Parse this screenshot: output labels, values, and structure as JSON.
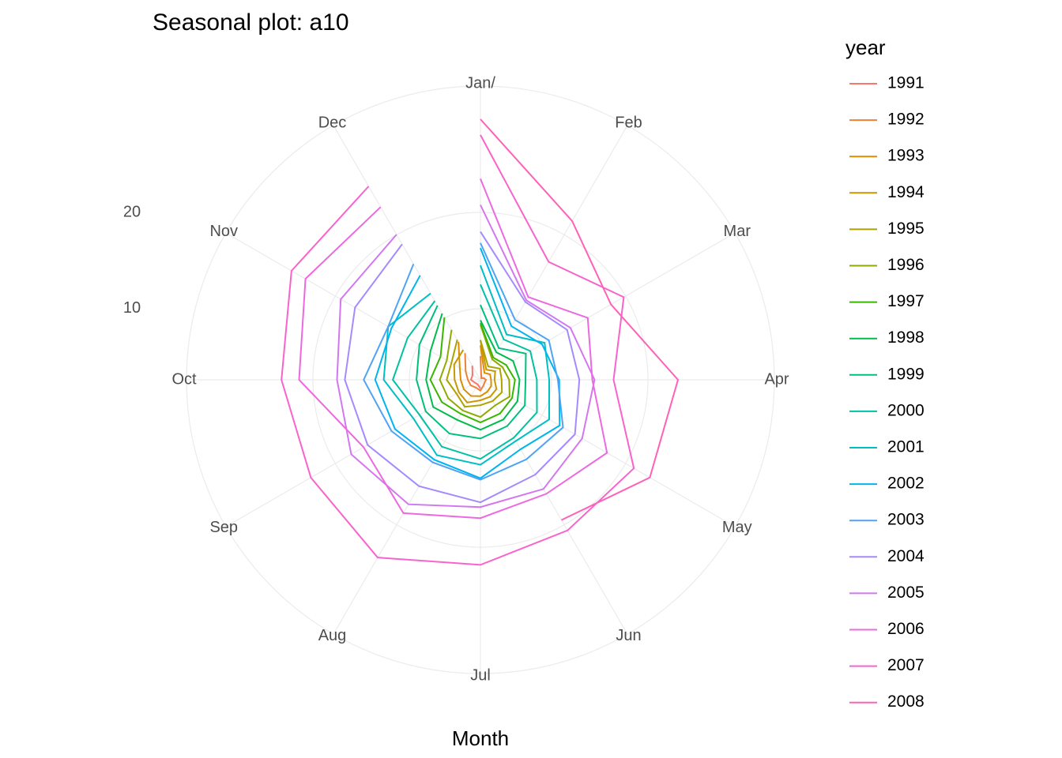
{
  "chart_data": {
    "type": "polar-line",
    "title": "Seasonal plot: a10",
    "x_label": "Month",
    "legend_title": "year",
    "legend": "right",
    "grid": true,
    "categories": [
      "Jan/",
      "Feb",
      "Mar",
      "Apr",
      "May",
      "Jun",
      "Jul",
      "Aug",
      "Sep",
      "Oct",
      "Nov",
      "Dec"
    ],
    "ylim": [
      2.62,
      29.67
    ],
    "yticks": [
      10,
      20
    ],
    "series": [
      {
        "name": "1991",
        "color": "#F8766D",
        "values": [
          null,
          null,
          null,
          null,
          null,
          null,
          3.53,
          3.18,
          3.25,
          3.61,
          3.57,
          4.31
        ]
      },
      {
        "name": "1992",
        "color": "#EC8239",
        "values": [
          5.09,
          2.81,
          2.99,
          3.2,
          3.13,
          3.27,
          3.74,
          3.56,
          3.78,
          3.92,
          4.39,
          5.81
        ]
      },
      {
        "name": "1993",
        "color": "#DB8E00",
        "values": [
          6.19,
          3.45,
          3.77,
          3.73,
          3.91,
          4.05,
          4.32,
          4.56,
          4.61,
          4.67,
          5.09,
          7.18
        ]
      },
      {
        "name": "1994",
        "color": "#C79800",
        "values": [
          6.73,
          3.84,
          4.39,
          4.08,
          4.54,
          4.65,
          4.75,
          5.35,
          5.2,
          5.3,
          5.77,
          6.2
        ]
      },
      {
        "name": "1995",
        "color": "#AEA200",
        "values": [
          6.75,
          4.22,
          4.95,
          4.82,
          5.19,
          5.17,
          5.26,
          5.86,
          5.49,
          6.12,
          6.09,
          7.42
        ]
      },
      {
        "name": "1996",
        "color": "#8FAA00",
        "values": [
          8.33,
          5.07,
          5.26,
          5.6,
          6.11,
          5.69,
          6.49,
          6.3,
          6.47,
          6.83,
          6.65,
          8.61
        ]
      },
      {
        "name": "1997",
        "color": "#39B600",
        "values": [
          8.52,
          5.28,
          5.71,
          6.21,
          6.41,
          6.67,
          7.05,
          6.7,
          7.25,
          7.82,
          7.4,
          10.1
        ]
      },
      {
        "name": "1998",
        "color": "#00BB4E",
        "values": [
          8.8,
          5.92,
          6.53,
          6.68,
          7.06,
          7.38,
          7.81,
          7.43,
          8.28,
          8.26,
          8.6,
          10.56
        ]
      },
      {
        "name": "1999",
        "color": "#00BF7D",
        "values": [
          10.39,
          6.42,
          8.06,
          7.3,
          7.94,
          8.17,
          8.72,
          9.07,
          9.18,
          9.25,
          9.93,
          11.53
        ]
      },
      {
        "name": "2000",
        "color": "#00C1A3",
        "values": [
          12.51,
          7.46,
          8.59,
          8.47,
          9.39,
          9.56,
          10.83,
          10.64,
          9.91,
          11.71,
          11.34,
          12.08
        ]
      },
      {
        "name": "2001",
        "color": "#00BFC4",
        "values": [
          14.5,
          8.05,
          10.31,
          9.75,
          10.85,
          9.96,
          11.44,
          11.66,
          10.65,
          12.65,
          13.67,
          12.97
        ]
      },
      {
        "name": "2002",
        "color": "#00B4EF",
        "values": [
          16.3,
          9.05,
          10.0,
          10.79,
          12.11,
          10.95,
          12.84,
          12.2,
          12.85,
          13.54,
          13.29,
          15.13
        ]
      },
      {
        "name": "2003",
        "color": "#4FA3F5",
        "values": [
          16.83,
          9.8,
          10.82,
          10.65,
          12.51,
          12.16,
          13.0,
          12.52,
          13.27,
          14.73,
          13.67,
          16.5
        ]
      },
      {
        "name": "2004",
        "color": "#A58AFF",
        "values": [
          18.0,
          11.94,
          13.0,
          12.88,
          13.94,
          13.99,
          15.34,
          15.37,
          16.14,
          16.69,
          17.64,
          18.87
        ]
      },
      {
        "name": "2005",
        "color": "#D277F0",
        "values": [
          20.78,
          12.15,
          13.4,
          14.46,
          14.8,
          15.71,
          15.83,
          17.55,
          18.1,
          17.5,
          19.35,
          20.03
        ]
      },
      {
        "name": "2006",
        "color": "#EC69E0",
        "values": [
          23.49,
          12.54,
          15.47,
          14.23,
          17.78,
          16.29,
          16.98,
          18.61,
          16.62,
          21.43,
          23.58,
          23.33
        ]
      },
      {
        "name": "2007",
        "color": "#F863CC",
        "values": [
          28.04,
          16.76,
          19.79,
          16.43,
          21.0,
          20.68,
          21.83,
          23.93,
          22.93,
          23.26,
          25.25,
          25.81
        ]
      },
      {
        "name": "2008",
        "color": "#FF61B8",
        "values": [
          29.67,
          21.65,
          18.26,
          23.11,
          22.91,
          19.43,
          null,
          null,
          null,
          null,
          null,
          null
        ]
      }
    ]
  }
}
